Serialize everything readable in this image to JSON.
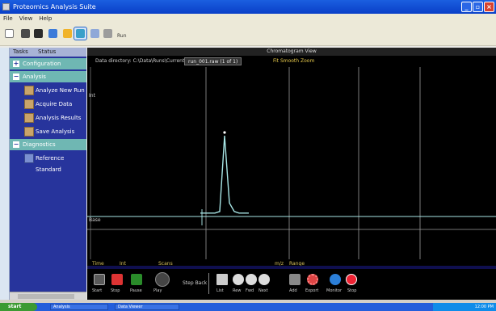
{
  "window": {
    "title": "Proteomics Analysis Suite"
  },
  "menu": [
    "File",
    "View",
    "Help"
  ],
  "toolbar": {
    "label": "Run"
  },
  "sidebar": {
    "tabs": [
      "Tasks",
      "Status"
    ],
    "groups": [
      {
        "label": "Configuration",
        "items": []
      },
      {
        "label": "Analysis",
        "items": [
          "Analyze New Run",
          "Acquire Data",
          "Analysis Results",
          "Save Analysis"
        ]
      },
      {
        "label": "Diagnostics",
        "items": [
          "Reference Standard"
        ]
      }
    ]
  },
  "main": {
    "title": "Chromatogram View",
    "field_label": "Data directory: C:\\Data\\Runs\\Current",
    "field_value": "run_001.raw  (1 of 1)",
    "options_label": "Fit  Smooth  Zoom",
    "y_label": "Int",
    "baseline_label": "Base"
  },
  "status": {
    "left1": "Time",
    "left2": "Int",
    "left3": "Scans",
    "mid1": "m/z",
    "mid2": "Range"
  },
  "controls": [
    "Start",
    "Stop",
    "Pause",
    "Play",
    "Step Back",
    "List",
    "Rew",
    "Fwd",
    "Next",
    "Add",
    "Export",
    "Monitor",
    "Stop"
  ],
  "taskbar": {
    "start": "start",
    "tasks": [
      "Analysis",
      "Data Viewer"
    ],
    "tray": "12:00 PM"
  },
  "chart_data": {
    "type": "line",
    "x": [
      0,
      10,
      20,
      30,
      40,
      50,
      60,
      70,
      80,
      90,
      100
    ],
    "series": [
      {
        "values": [
          2,
          2,
          2,
          2,
          3,
          48,
          8,
          3,
          2,
          2,
          2
        ]
      }
    ],
    "ylim": [
      0,
      60
    ]
  }
}
